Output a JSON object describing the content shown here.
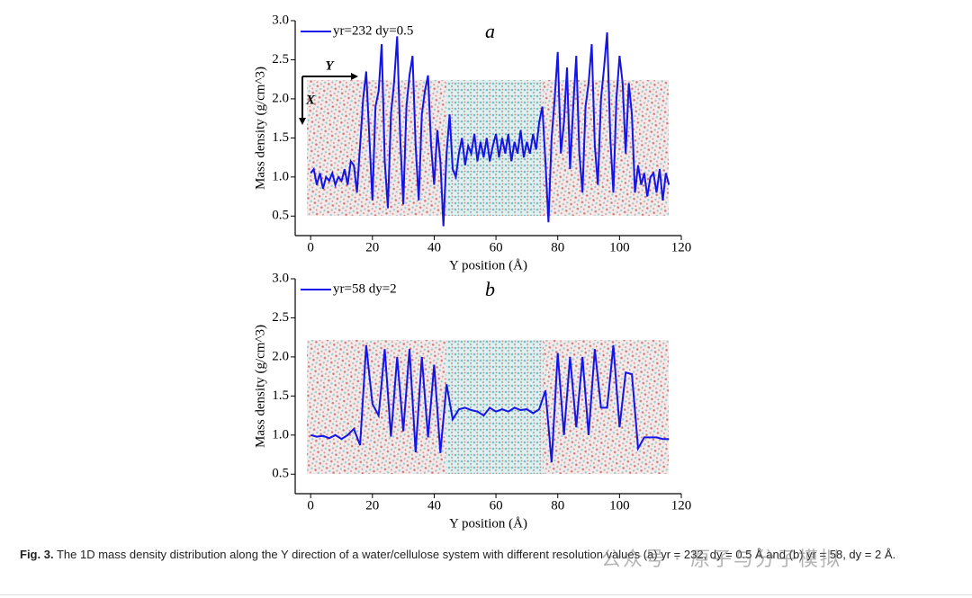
{
  "chart_data": [
    {
      "type": "line",
      "panel_label": "a",
      "annotations": [
        "Y",
        "X"
      ],
      "xlabel": "Y position (Å)",
      "ylabel": "Mass density (g/cm^3)",
      "xlim": [
        -5,
        120
      ],
      "ylim": [
        0.25,
        3.0
      ],
      "xticks": [
        0,
        20,
        40,
        60,
        80,
        100,
        120
      ],
      "yticks": [
        0.5,
        {
          "value": 1,
          "label": "1.0"
        },
        1.5,
        {
          "value": 2,
          "label": "2.0"
        },
        2.5,
        {
          "value": 3,
          "label": "3.0"
        }
      ],
      "legend": "upper left",
      "x": [
        0,
        1,
        2,
        3,
        4,
        5,
        6,
        7,
        8,
        9,
        10,
        11,
        12,
        13,
        14,
        15,
        16,
        17,
        18,
        19,
        20,
        21,
        22,
        23,
        24,
        25,
        26,
        27,
        28,
        29,
        30,
        31,
        32,
        33,
        34,
        35,
        36,
        37,
        38,
        39,
        40,
        41,
        42,
        43,
        44,
        45,
        46,
        47,
        48,
        49,
        50,
        51,
        52,
        53,
        54,
        55,
        56,
        57,
        58,
        59,
        60,
        61,
        62,
        63,
        64,
        65,
        66,
        67,
        68,
        69,
        70,
        71,
        72,
        73,
        74,
        75,
        76,
        77,
        78,
        79,
        80,
        81,
        82,
        83,
        84,
        85,
        86,
        87,
        88,
        89,
        90,
        91,
        92,
        93,
        94,
        95,
        96,
        97,
        98,
        99,
        100,
        101,
        102,
        103,
        104,
        105,
        106,
        107,
        108,
        109,
        110,
        111,
        112,
        113,
        114,
        115,
        116
      ],
      "series": [
        {
          "name": "yr=232 dy=0.5",
          "color": "#1414e6",
          "values": [
            1.05,
            1.1,
            0.9,
            1.05,
            0.85,
            1.0,
            0.95,
            1.05,
            0.9,
            1.0,
            0.95,
            1.1,
            0.9,
            1.2,
            1.15,
            0.8,
            1.4,
            2.0,
            2.35,
            1.5,
            0.7,
            1.9,
            2.1,
            2.7,
            1.2,
            0.6,
            1.8,
            2.2,
            2.8,
            1.5,
            0.65,
            1.9,
            2.3,
            2.55,
            1.4,
            0.7,
            1.8,
            2.1,
            2.3,
            1.4,
            0.9,
            1.6,
            1.2,
            0.37,
            1.3,
            1.8,
            1.1,
            1.0,
            1.3,
            1.5,
            1.15,
            1.4,
            1.3,
            1.55,
            1.2,
            1.45,
            1.25,
            1.5,
            1.2,
            1.4,
            1.55,
            1.25,
            1.5,
            1.3,
            1.55,
            1.2,
            1.45,
            1.3,
            1.6,
            1.25,
            1.45,
            1.3,
            1.55,
            1.35,
            1.7,
            1.9,
            1.2,
            0.42,
            1.5,
            2.0,
            2.6,
            1.3,
            1.7,
            2.4,
            1.1,
            1.9,
            2.55,
            1.3,
            0.8,
            1.9,
            2.2,
            2.7,
            1.4,
            0.9,
            2.0,
            2.4,
            2.85,
            1.5,
            0.8,
            2.0,
            2.55,
            2.2,
            1.3,
            2.2,
            1.8,
            0.8,
            1.15,
            0.9,
            1.05,
            0.75,
            1.0,
            1.05,
            0.8,
            1.1,
            0.7,
            1.05,
            0.9
          ]
        }
      ]
    },
    {
      "type": "line",
      "panel_label": "b",
      "annotations": [],
      "xlabel": "Y position (Å)",
      "ylabel": "Mass density (g/cm^3)",
      "xlim": [
        -5,
        120
      ],
      "ylim": [
        0.25,
        3.0
      ],
      "xticks": [
        0,
        20,
        40,
        60,
        80,
        100,
        120
      ],
      "yticks": [
        0.5,
        {
          "value": 1,
          "label": "1.0"
        },
        1.5,
        {
          "value": 2,
          "label": "2.0"
        },
        2.5,
        {
          "value": 3,
          "label": "3.0"
        }
      ],
      "legend": "upper left",
      "x": [
        0,
        2,
        4,
        6,
        8,
        10,
        12,
        14,
        16,
        18,
        20,
        22,
        24,
        26,
        28,
        30,
        32,
        34,
        36,
        38,
        40,
        42,
        44,
        46,
        48,
        50,
        52,
        54,
        56,
        58,
        60,
        62,
        64,
        66,
        68,
        70,
        72,
        74,
        76,
        78,
        80,
        82,
        84,
        86,
        88,
        90,
        92,
        94,
        96,
        98,
        100,
        102,
        104,
        106,
        108,
        110,
        112,
        114,
        116
      ],
      "series": [
        {
          "name": "yr=58 dy=2",
          "color": "#1414e6",
          "values": [
            1.0,
            0.98,
            0.99,
            0.96,
            1.0,
            0.95,
            1.0,
            1.08,
            0.87,
            2.15,
            1.4,
            1.25,
            2.1,
            0.98,
            2.0,
            1.05,
            2.1,
            0.78,
            2.0,
            0.97,
            1.9,
            0.77,
            1.65,
            1.2,
            1.33,
            1.35,
            1.32,
            1.3,
            1.25,
            1.35,
            1.3,
            1.33,
            1.3,
            1.35,
            1.32,
            1.33,
            1.28,
            1.33,
            1.57,
            0.65,
            2.05,
            1.0,
            2.0,
            1.1,
            2.0,
            1.0,
            2.1,
            1.35,
            1.35,
            2.15,
            1.1,
            1.8,
            1.78,
            0.83,
            0.97,
            0.97,
            0.97,
            0.95,
            0.95
          ]
        }
      ]
    }
  ],
  "caption": {
    "label": "Fig. 3.",
    "text": "The 1D mass density distribution along the Y direction of a water/cellulose system with different resolution values (a) yr = 232, dy = 0.5 Å and (b) yr = 58, dy = 2 Å."
  },
  "watermark": "公众号 · 原子与分子模拟"
}
